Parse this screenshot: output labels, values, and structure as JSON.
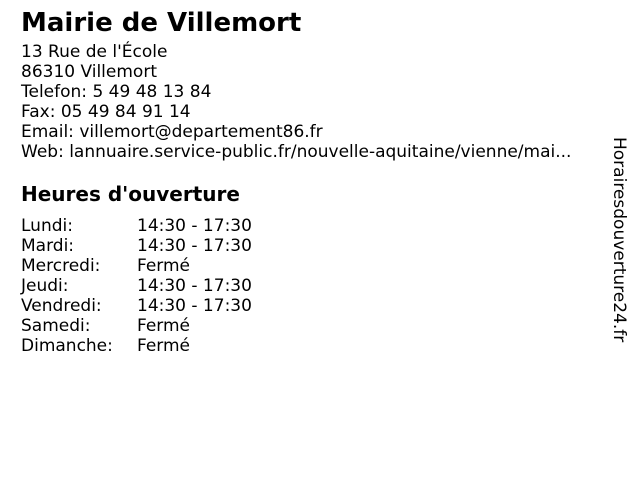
{
  "business": {
    "name": "Mairie de Villemort",
    "street": "13 Rue de l'École",
    "city": "86310 Villemort"
  },
  "contact": [
    {
      "label": "Telefon:",
      "value": "5 49 48 13 84"
    },
    {
      "label": "Fax:",
      "value": "05 49 84 91 14"
    },
    {
      "label": "Email:",
      "value": "villemort@departement86.fr"
    },
    {
      "label": "Web:",
      "value": "lannuaire.service-public.fr/nouvelle-aquitaine/vienne/mai..."
    }
  ],
  "hours": {
    "heading": "Heures d'ouverture",
    "rows": [
      {
        "day": "Lundi:",
        "value": "14:30 - 17:30"
      },
      {
        "day": "Mardi:",
        "value": "14:30 - 17:30"
      },
      {
        "day": "Mercredi:",
        "value": "Fermé"
      },
      {
        "day": "Jeudi:",
        "value": "14:30 - 17:30"
      },
      {
        "day": "Vendredi:",
        "value": "14:30 - 17:30"
      },
      {
        "day": "Samedi:",
        "value": "Fermé"
      },
      {
        "day": "Dimanche:",
        "value": "Fermé"
      }
    ]
  },
  "watermark": {
    "text": "Horairesdouverture24.fr"
  },
  "colors": {
    "text": "#000000",
    "background": "#ffffff"
  }
}
